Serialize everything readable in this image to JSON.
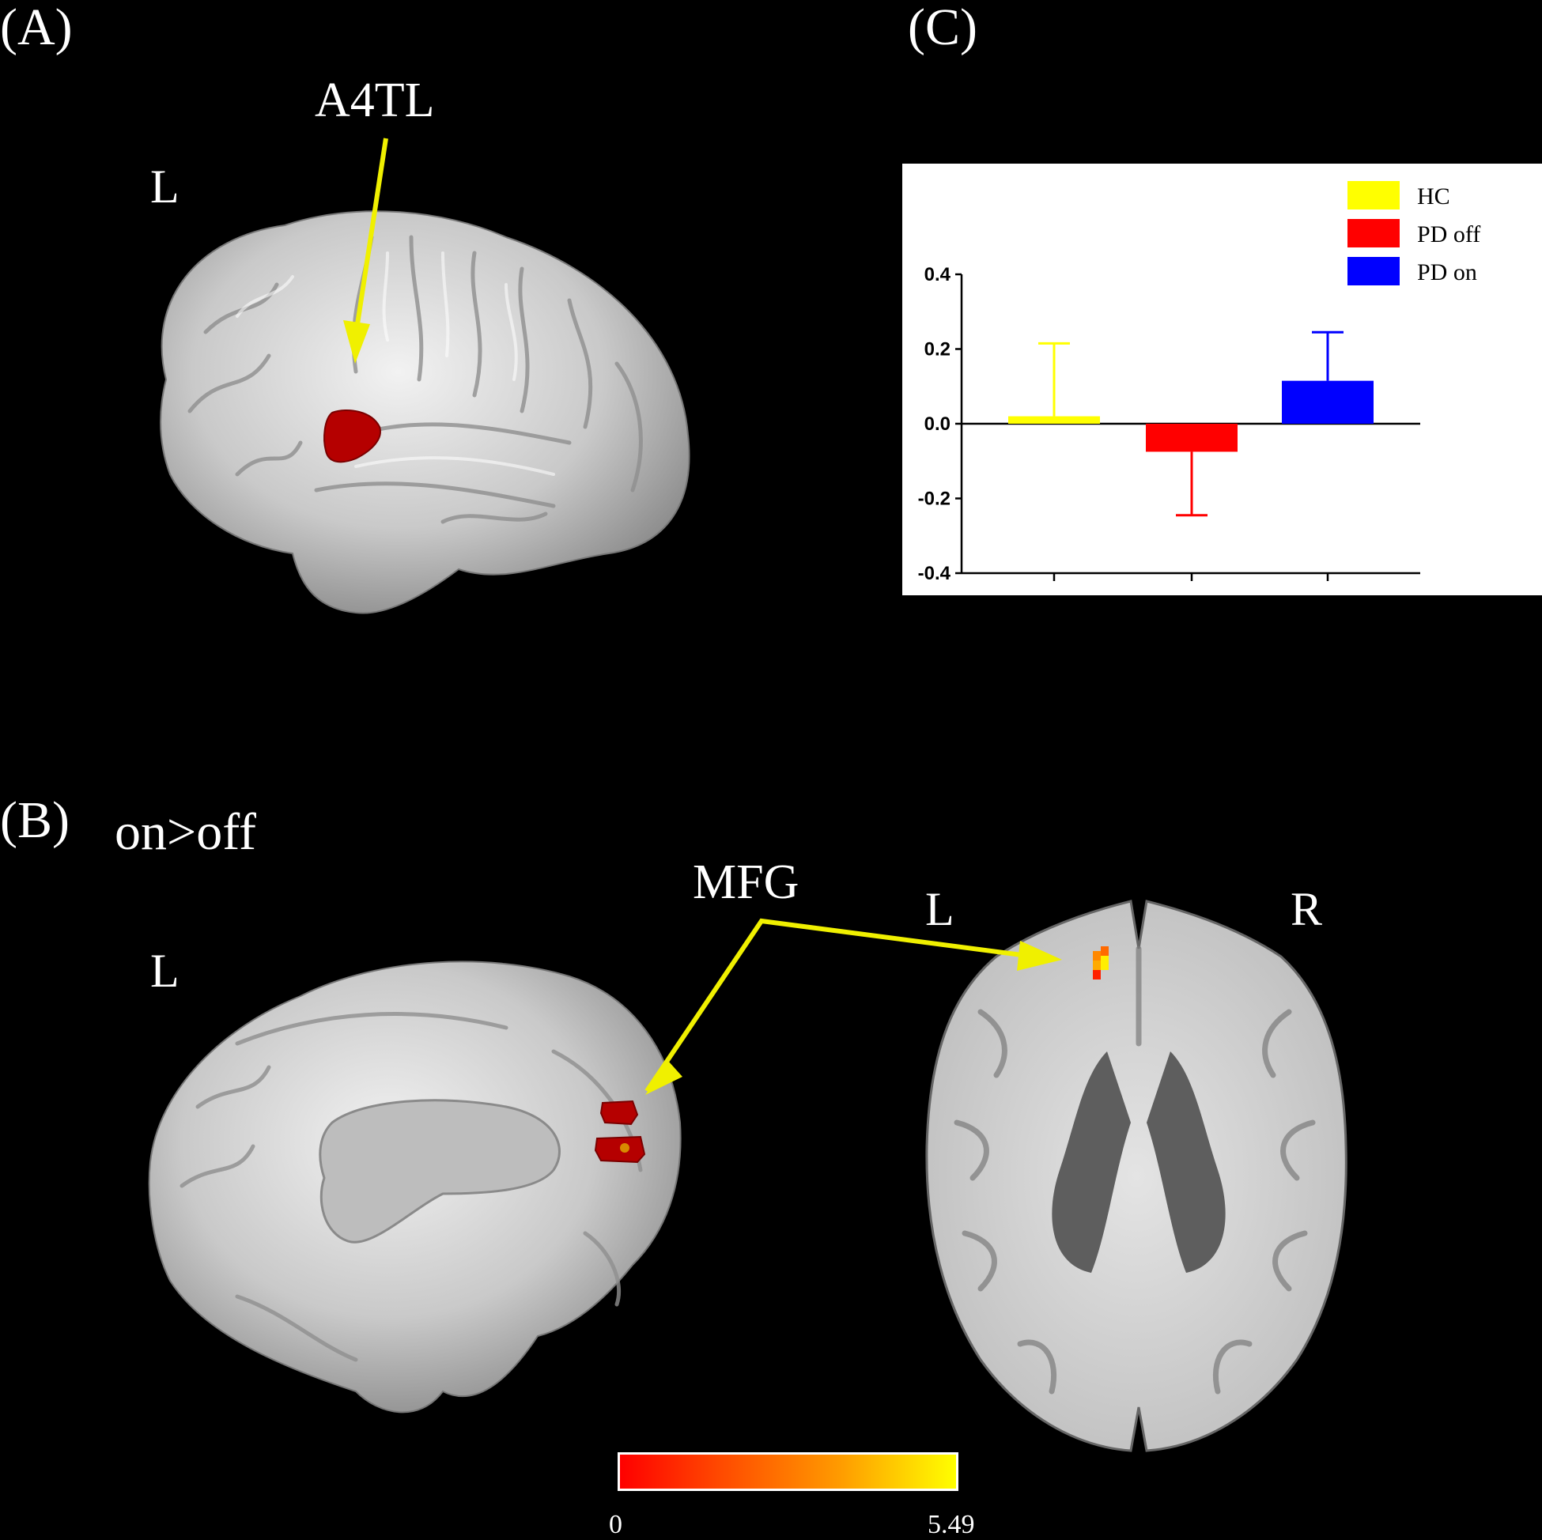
{
  "panels": {
    "a": {
      "label": "(A)",
      "side": "L",
      "region": "A4TL"
    },
    "b": {
      "label": "(B)",
      "contrast": "on>off",
      "side": "L",
      "region": "MFG",
      "axial_left": "L",
      "axial_right": "R"
    },
    "c": {
      "label": "(C)"
    }
  },
  "colorbar": {
    "min": "0",
    "max": "5.49",
    "colors": [
      "#ff0000",
      "#ffff00"
    ]
  },
  "chart_data": {
    "type": "bar",
    "categories": [
      "HC",
      "PD off",
      "PD on"
    ],
    "values": [
      0.02,
      -0.075,
      0.115
    ],
    "error_bars": [
      0.195,
      0.17,
      0.13
    ],
    "colors": [
      "#ffff00",
      "#ff0000",
      "#0000ff"
    ],
    "ylim": [
      -0.4,
      0.4
    ],
    "yticks": [
      "-0.4",
      "-0.2",
      "0.0",
      "0.2",
      "0.4"
    ],
    "legend": [
      {
        "name": "HC",
        "color": "#ffff00"
      },
      {
        "name": "PD off",
        "color": "#ff0000"
      },
      {
        "name": "PD on",
        "color": "#0000ff"
      }
    ],
    "legend_position": "top-right",
    "grid": false,
    "title": "",
    "xlabel": "",
    "ylabel": ""
  }
}
